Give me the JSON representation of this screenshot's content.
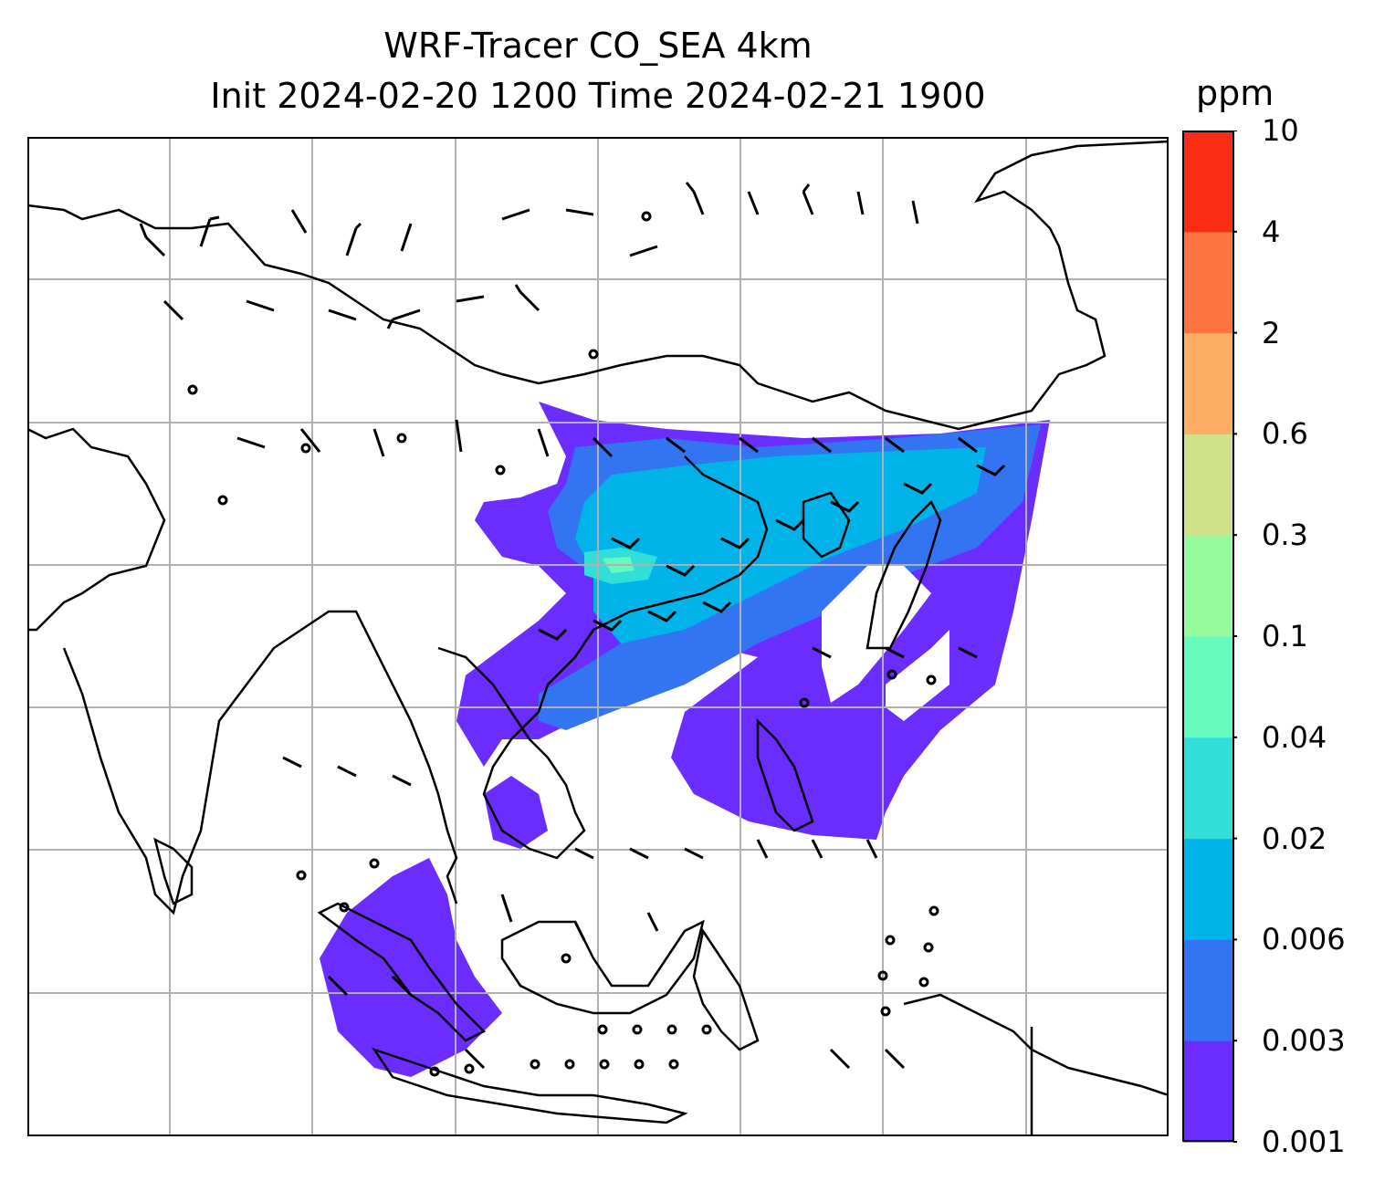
{
  "title": {
    "line1": "WRF-Tracer CO_SEA 4km",
    "line2": "Init 2024-02-20 1200 Time 2024-02-21 1900"
  },
  "colorbar": {
    "units": "ppm",
    "levels": [
      "0.001",
      "0.003",
      "0.006",
      "0.02",
      "0.04",
      "0.1",
      "0.3",
      "0.6",
      "2",
      "4",
      "10"
    ],
    "colors": [
      "#6a2cff",
      "#3274f2",
      "#00b3e8",
      "#32dfd8",
      "#66fbbd",
      "#96fb9c",
      "#cfe28a",
      "#fdb065",
      "#fd7442",
      "#fb2c14"
    ]
  },
  "map": {
    "graticule": true,
    "coastline_color": "#000000",
    "wind_barbs": true
  }
}
